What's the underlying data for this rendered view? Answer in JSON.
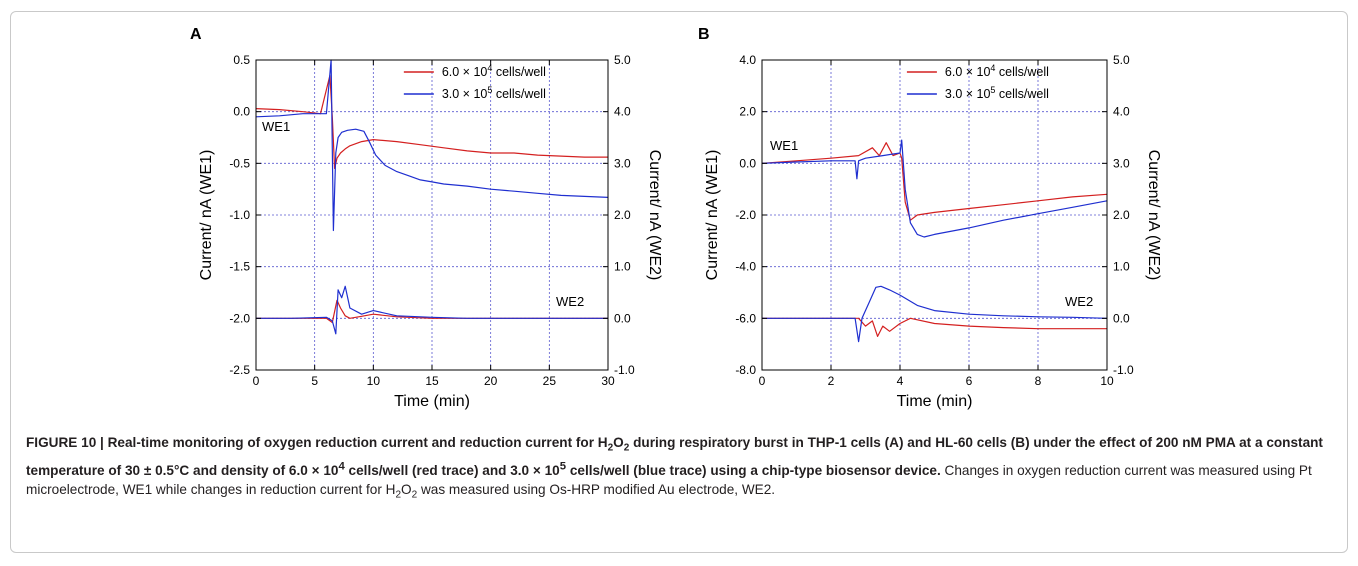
{
  "figure": {
    "caption_bold": [
      "FIGURE 10 | Real-time monitoring of oxygen reduction current and reduction current for H",
      "2",
      "O",
      "2",
      " during respiratory burst in THP-1 cells (A) and HL-60 cells (B) under the effect of 200 nM PMA at a constant temperature of 30 ± 0.5°C and density of 6.0 × 10",
      "4",
      " cells/well (red trace) and 3.0 × 10",
      "5",
      " cells/well (blue trace) using a chip-type biosensor device."
    ],
    "caption_normal": [
      " Changes in oxygen reduction current was measured using Pt microelectrode, WE1 while changes in reduction current for H",
      "2",
      "O",
      "2",
      " was measured using Os-HRP modified Au electrode, WE2."
    ]
  },
  "colors": {
    "red": "#d42020",
    "blue": "#1f2fd0",
    "grid": "#5a5ad0",
    "axis": "#000000"
  },
  "chart_data": [
    {
      "panel": "A",
      "type": "line",
      "xlabel": "Time (min)",
      "ylabel_left": "Current/ nA (WE1)",
      "ylabel_right": "Current/ nA (WE2)",
      "xlim": [
        0,
        30
      ],
      "ylim_left": [
        -2.5,
        0.5
      ],
      "ylim_right": [
        -1.0,
        5.0
      ],
      "xticks": [
        "0",
        "5",
        "10",
        "15",
        "20",
        "25",
        "30"
      ],
      "yticks_left": [
        "0.5",
        "0.0",
        "-0.5",
        "-1.0",
        "-1.5",
        "-2.0",
        "-2.5"
      ],
      "yticks_right": [
        "5.0",
        "4.0",
        "3.0",
        "2.0",
        "1.0",
        "0.0",
        "-1.0"
      ],
      "grid": true,
      "legend_position": "top-right",
      "legend": [
        {
          "prefix": "6.0 × 10",
          "exp": "4",
          "suffix": " cells/well",
          "color": "red"
        },
        {
          "prefix": "3.0 × 10",
          "exp": "5",
          "suffix": " cells/well",
          "color": "blue"
        }
      ],
      "annotations": [
        "WE1",
        "WE2"
      ],
      "series": [
        {
          "electrode": "WE1",
          "color": "red",
          "axis": "left",
          "x": [
            0,
            2,
            4,
            5.5,
            6.3,
            6.5,
            6.7,
            6.9,
            7.2,
            7.6,
            8,
            9,
            10,
            12,
            14,
            16,
            18,
            20,
            22,
            24,
            26,
            28,
            30
          ],
          "y": [
            0.03,
            0.02,
            0.0,
            -0.02,
            0.35,
            -0.05,
            -0.55,
            -0.45,
            -0.4,
            -0.36,
            -0.33,
            -0.29,
            -0.27,
            -0.29,
            -0.32,
            -0.35,
            -0.38,
            -0.4,
            -0.4,
            -0.42,
            -0.43,
            -0.44,
            -0.44
          ]
        },
        {
          "electrode": "WE1",
          "color": "blue",
          "axis": "left",
          "x": [
            0,
            2,
            4,
            6,
            6.4,
            6.6,
            6.8,
            7,
            7.3,
            7.8,
            8.5,
            9.2,
            9.7,
            10.2,
            11,
            12,
            13,
            14,
            15,
            16,
            18,
            20,
            22,
            24,
            26,
            28,
            30
          ],
          "y": [
            -0.05,
            -0.04,
            -0.02,
            -0.02,
            0.5,
            -1.15,
            -0.4,
            -0.25,
            -0.2,
            -0.18,
            -0.17,
            -0.19,
            -0.3,
            -0.42,
            -0.52,
            -0.58,
            -0.62,
            -0.66,
            -0.68,
            -0.7,
            -0.72,
            -0.75,
            -0.77,
            -0.79,
            -0.81,
            -0.82,
            -0.83
          ]
        },
        {
          "electrode": "WE2",
          "color": "red",
          "axis": "right",
          "x": [
            0,
            3,
            6,
            6.5,
            6.9,
            7.2,
            7.6,
            8,
            9,
            10,
            12,
            15,
            18,
            21,
            24,
            27,
            30
          ],
          "y": [
            0.0,
            0.0,
            0.0,
            -0.08,
            0.35,
            0.2,
            0.05,
            0.0,
            0.04,
            0.08,
            0.03,
            0.0,
            0.0,
            0.0,
            0.0,
            0.0,
            0.0
          ]
        },
        {
          "electrode": "WE2",
          "color": "blue",
          "axis": "right",
          "x": [
            0,
            3,
            6,
            6.5,
            6.8,
            7.0,
            7.3,
            7.6,
            8,
            9,
            10,
            12,
            15,
            18,
            21,
            24,
            27,
            30
          ],
          "y": [
            0.0,
            0.0,
            0.02,
            -0.05,
            -0.3,
            0.55,
            0.4,
            0.62,
            0.2,
            0.08,
            0.15,
            0.05,
            0.02,
            0.0,
            0.0,
            0.0,
            0.0,
            0.0
          ]
        }
      ]
    },
    {
      "panel": "B",
      "type": "line",
      "xlabel": "Time (min)",
      "ylabel_left": "Current/ nA (WE1)",
      "ylabel_right": "Current/ nA (WE2)",
      "xlim": [
        0,
        10
      ],
      "ylim_left": [
        -8.0,
        4.0
      ],
      "ylim_right": [
        -1.0,
        5.0
      ],
      "xticks": [
        "0",
        "2",
        "4",
        "6",
        "8",
        "10"
      ],
      "yticks_left": [
        "4.0",
        "2.0",
        "0.0",
        "-2.0",
        "-4.0",
        "-6.0",
        "-8.0"
      ],
      "yticks_right": [
        "5.0",
        "4.0",
        "3.0",
        "2.0",
        "1.0",
        "0.0",
        "-1.0"
      ],
      "grid": true,
      "legend_position": "top-right",
      "legend": [
        {
          "prefix": "6.0 × 10",
          "exp": "4",
          "suffix": " cells/well",
          "color": "red"
        },
        {
          "prefix": "3.0 × 10",
          "exp": "5",
          "suffix": " cells/well",
          "color": "blue"
        }
      ],
      "annotations": [
        "WE1",
        "WE2"
      ],
      "series": [
        {
          "electrode": "WE1",
          "color": "red",
          "axis": "left",
          "x": [
            0,
            1,
            2,
            2.8,
            3.2,
            3.4,
            3.6,
            3.8,
            4.0,
            4.05,
            4.15,
            4.3,
            4.5,
            5,
            6,
            7,
            8,
            9,
            10
          ],
          "y": [
            0.0,
            0.1,
            0.2,
            0.3,
            0.6,
            0.3,
            0.8,
            0.3,
            0.4,
            0.2,
            -1.5,
            -2.2,
            -2.0,
            -1.9,
            -1.75,
            -1.6,
            -1.45,
            -1.3,
            -1.2
          ]
        },
        {
          "electrode": "WE1",
          "color": "blue",
          "axis": "left",
          "x": [
            0,
            1,
            2,
            2.7,
            2.75,
            2.8,
            3,
            3.5,
            4.0,
            4.05,
            4.15,
            4.3,
            4.5,
            4.7,
            5,
            6,
            7,
            8,
            9,
            10
          ],
          "y": [
            0.0,
            0.05,
            0.1,
            0.1,
            -0.6,
            0.1,
            0.2,
            0.3,
            0.4,
            0.9,
            -1.0,
            -2.3,
            -2.75,
            -2.85,
            -2.75,
            -2.5,
            -2.2,
            -1.95,
            -1.7,
            -1.45
          ]
        },
        {
          "electrode": "WE2",
          "color": "red",
          "axis": "right",
          "x": [
            0,
            1,
            2,
            2.8,
            3.0,
            3.2,
            3.35,
            3.5,
            3.7,
            4.0,
            4.3,
            5,
            6,
            7,
            8,
            9,
            10
          ],
          "y": [
            0.0,
            0.0,
            0.0,
            0.0,
            -0.15,
            -0.05,
            -0.35,
            -0.15,
            -0.25,
            -0.1,
            0.0,
            -0.1,
            -0.15,
            -0.18,
            -0.2,
            -0.2,
            -0.2
          ]
        },
        {
          "electrode": "WE2",
          "color": "blue",
          "axis": "right",
          "x": [
            0,
            1,
            2,
            2.7,
            2.8,
            2.9,
            3.1,
            3.3,
            3.45,
            3.7,
            4.0,
            4.5,
            5,
            6,
            7,
            8,
            9,
            10
          ],
          "y": [
            0.0,
            0.0,
            0.0,
            0.0,
            -0.45,
            0.0,
            0.3,
            0.6,
            0.62,
            0.55,
            0.45,
            0.25,
            0.15,
            0.08,
            0.05,
            0.03,
            0.02,
            0.0
          ]
        }
      ]
    }
  ]
}
